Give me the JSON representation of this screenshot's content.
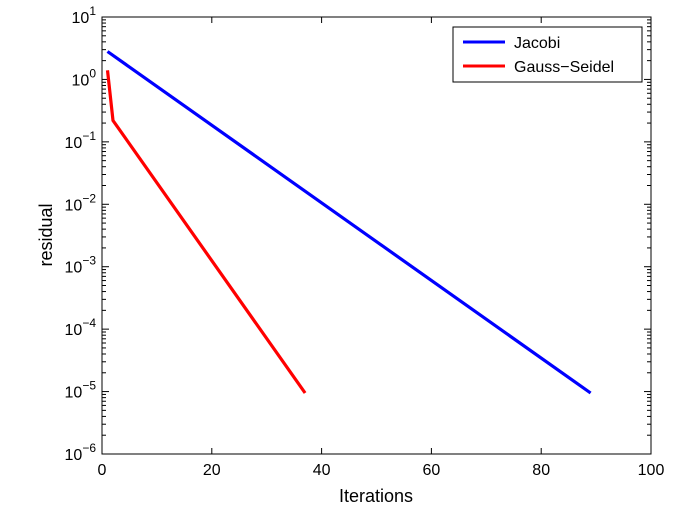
{
  "chart_data": {
    "type": "line",
    "title": "",
    "xlabel": "Iterations",
    "ylabel": "residual",
    "xlim": [
      0,
      100
    ],
    "ylim_exponents": [
      -6,
      1
    ],
    "yscale": "log",
    "grid": false,
    "legend_position": "top-right",
    "x_ticks": [
      {
        "value": 0,
        "label": "0"
      },
      {
        "value": 20,
        "label": "20"
      },
      {
        "value": 40,
        "label": "40"
      },
      {
        "value": 60,
        "label": "60"
      },
      {
        "value": 80,
        "label": "80"
      },
      {
        "value": 100,
        "label": "100"
      }
    ],
    "y_ticks": [
      {
        "exp": -6,
        "base": "10",
        "sup": "−6"
      },
      {
        "exp": -5,
        "base": "10",
        "sup": "−5"
      },
      {
        "exp": -4,
        "base": "10",
        "sup": "−4"
      },
      {
        "exp": -3,
        "base": "10",
        "sup": "−3"
      },
      {
        "exp": -2,
        "base": "10",
        "sup": "−2"
      },
      {
        "exp": -1,
        "base": "10",
        "sup": "−1"
      },
      {
        "exp": 0,
        "base": "10",
        "sup": "0"
      },
      {
        "exp": 1,
        "base": "10",
        "sup": "1"
      }
    ],
    "series": [
      {
        "name": "Jacobi",
        "color": "#0000ff",
        "points": [
          [
            1,
            2.8
          ],
          [
            89,
            9.5e-06
          ]
        ]
      },
      {
        "name": "Gauss−Seidel",
        "color": "#ff0000",
        "points": [
          [
            1,
            1.4
          ],
          [
            2,
            0.22
          ],
          [
            37,
            9.5e-06
          ]
        ]
      }
    ]
  }
}
